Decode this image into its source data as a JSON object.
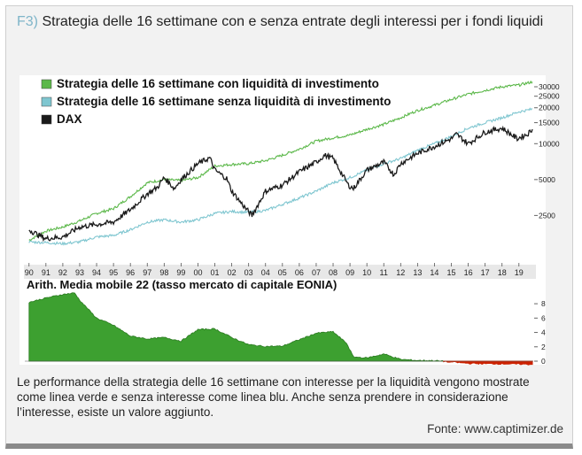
{
  "figure": {
    "label": "F3)",
    "title": "Strategia delle 16 settimane con e senza entrate degli interessi per i fondi liquidi"
  },
  "caption": "Le performance della strategia delle 16 settimane con interesse per la liquidità vengono mostrate come linea verde e senza interesse come linea blu. Anche senza prendere in considerazione l’interesse, esiste un valore aggiunto.",
  "source": "Fonte: www.captimizer.de",
  "colors": {
    "green": "#5cb84a",
    "blue": "#7fc6d0",
    "dax": "#1a1a1a",
    "eonia_fill": "#3da030",
    "negative": "#cc2200"
  },
  "chart_data": [
    {
      "type": "line",
      "yscale": "log",
      "ylim": [
        1000,
        35000
      ],
      "yticks": [
        2500,
        5000,
        10000,
        15000,
        20000,
        25000,
        30000
      ],
      "x_tick_labels": [
        "90",
        "91",
        "92",
        "93",
        "94",
        "95",
        "96",
        "97",
        "98",
        "99",
        "00",
        "01",
        "02",
        "03",
        "04",
        "05",
        "06",
        "07",
        "08",
        "09",
        "10",
        "11",
        "12",
        "13",
        "14",
        "15",
        "16",
        "17",
        "18",
        "19"
      ],
      "grid": false,
      "legend": "top-left",
      "series": [
        {
          "name": "Strategia delle 16 settimane con liquidità di investimento",
          "color": "#5cb84a",
          "x": [
            1990,
            1991,
            1992,
            1993,
            1994,
            1995,
            1996,
            1997,
            1998,
            1999,
            2000,
            2001,
            2002,
            2003,
            2004,
            2005,
            2006,
            2007,
            2008,
            2009,
            2010,
            2011,
            2012,
            2013,
            2014,
            2015,
            2016,
            2017,
            2018,
            2019,
            2019.8
          ],
          "y": [
            1550,
            1850,
            2000,
            2250,
            2600,
            2850,
            3600,
            4700,
            5000,
            4900,
            5200,
            6500,
            6700,
            6800,
            7200,
            8000,
            9000,
            10500,
            11200,
            11800,
            13200,
            14500,
            16500,
            19000,
            21000,
            23500,
            26000,
            28000,
            30000,
            31000,
            33000
          ]
        },
        {
          "name": "Strategia delle 16 settimane senza liquidità di investimento",
          "color": "#7fc6d0",
          "x": [
            1990,
            1991,
            1992,
            1993,
            1994,
            1995,
            1996,
            1997,
            1998,
            1999,
            2000,
            2001,
            2002,
            2003,
            2004,
            2005,
            2006,
            2007,
            2008,
            2009,
            2010,
            2011,
            2012,
            2013,
            2014,
            2015,
            2016,
            2017,
            2018,
            2019,
            2019.8
          ],
          "y": [
            1500,
            1480,
            1450,
            1500,
            1650,
            1700,
            1900,
            2200,
            2300,
            2200,
            2300,
            2600,
            2700,
            2650,
            2750,
            3100,
            3500,
            4000,
            4700,
            5200,
            6000,
            6800,
            7500,
            8800,
            10000,
            11500,
            13500,
            15000,
            16500,
            18500,
            19500
          ]
        },
        {
          "name": "DAX",
          "color": "#1a1a1a",
          "x": [
            1990,
            1990.6,
            1991,
            1992,
            1993,
            1994,
            1995,
            1996,
            1997,
            1997.6,
            1998,
            1998.6,
            1999,
            2000,
            2000.7,
            2001,
            2001.7,
            2002,
            2002.7,
            2003.2,
            2004,
            2005,
            2006,
            2007,
            2007.5,
            2008,
            2008.9,
            2009.2,
            2010,
            2011,
            2011.6,
            2012,
            2013,
            2014,
            2015,
            2015.3,
            2016,
            2017,
            2018,
            2018.9,
            2019.5,
            2019.8
          ],
          "y": [
            1900,
            1700,
            1600,
            1650,
            2000,
            2100,
            2200,
            2800,
            3800,
            4300,
            5200,
            4200,
            5000,
            6800,
            7600,
            6000,
            5100,
            4000,
            3000,
            2500,
            4000,
            4500,
            5800,
            7000,
            8000,
            7500,
            4500,
            4200,
            6000,
            7000,
            5500,
            6800,
            8300,
            9500,
            11000,
            12000,
            10000,
            12500,
            13500,
            11000,
            12000,
            13200
          ]
        }
      ]
    },
    {
      "type": "area",
      "title": "Arith. Media mobile 22 (tasso mercato di capitale EONIA)",
      "ylim": [
        0,
        9
      ],
      "yticks": [
        0,
        2,
        4,
        6,
        8
      ],
      "series": [
        {
          "name": "EONIA",
          "x": [
            1990,
            1991,
            1992,
            1992.7,
            1993,
            1994,
            1995,
            1996,
            1997,
            1998,
            1999,
            2000,
            2001,
            2002,
            2003,
            2004,
            2005,
            2006,
            2007,
            2008,
            2008.8,
            2009.2,
            2010,
            2011,
            2012,
            2013,
            2014,
            2015,
            2016,
            2017,
            2018,
            2019,
            2019.8
          ],
          "y": [
            8.2,
            8.8,
            9.3,
            9.5,
            8.5,
            6,
            5,
            3.5,
            3.1,
            3.3,
            2.8,
            4.4,
            4.5,
            3.3,
            2.3,
            2.05,
            2.1,
            3.0,
            3.9,
            4.1,
            2.5,
            0.6,
            0.45,
            1.0,
            0.25,
            0.1,
            0.08,
            -0.1,
            -0.3,
            -0.35,
            -0.36,
            -0.4,
            -0.45
          ]
        }
      ]
    }
  ]
}
